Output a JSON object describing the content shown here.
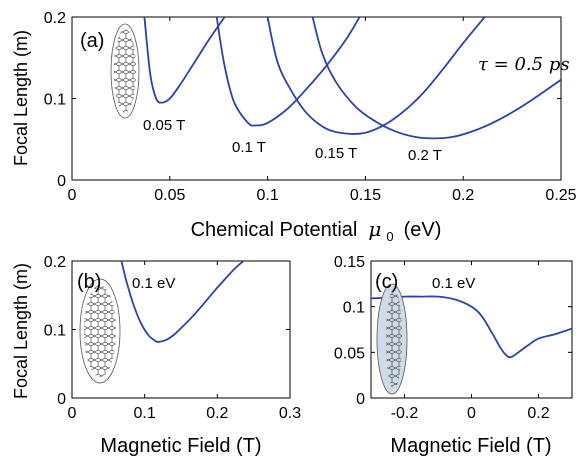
{
  "chart_data": [
    {
      "type": "line",
      "panel_label": "(a)",
      "xlabel": "Chemical Potential",
      "xlabel_symbol": "μ",
      "xlabel_sub": "0",
      "xlabel_unit": "(eV)",
      "ylabel": "Focal Length (m)",
      "xlim": [
        0,
        0.25
      ],
      "ylim": [
        0,
        0.2
      ],
      "xticks": [
        "0",
        "0.05",
        "0.1",
        "0.15",
        "0.2",
        "0.25"
      ],
      "yticks": [
        "0",
        "0.1",
        "0.2"
      ],
      "annotation_tau": "τ = 0.5 ps",
      "line_color": "#2b43a8",
      "series": [
        {
          "name": "0.05 T",
          "x": [
            0.037,
            0.04,
            0.043,
            0.046,
            0.05,
            0.055,
            0.062,
            0.07,
            0.078
          ],
          "y": [
            0.2,
            0.13,
            0.1,
            0.095,
            0.1,
            0.116,
            0.142,
            0.172,
            0.2
          ]
        },
        {
          "name": "0.1 T",
          "x": [
            0.074,
            0.078,
            0.083,
            0.09,
            0.094,
            0.1,
            0.11,
            0.12,
            0.13,
            0.14,
            0.147
          ],
          "y": [
            0.2,
            0.14,
            0.095,
            0.07,
            0.067,
            0.07,
            0.087,
            0.112,
            0.14,
            0.172,
            0.2
          ]
        },
        {
          "name": "0.15 T",
          "x": [
            0.1,
            0.105,
            0.112,
            0.12,
            0.13,
            0.14,
            0.15,
            0.16,
            0.17,
            0.18,
            0.19,
            0.2,
            0.211
          ],
          "y": [
            0.2,
            0.145,
            0.11,
            0.082,
            0.063,
            0.057,
            0.058,
            0.068,
            0.085,
            0.108,
            0.137,
            0.168,
            0.2
          ]
        },
        {
          "name": "0.2 T",
          "x": [
            0.123,
            0.128,
            0.135,
            0.145,
            0.155,
            0.165,
            0.175,
            0.185,
            0.195,
            0.205,
            0.215,
            0.225,
            0.235,
            0.25
          ],
          "y": [
            0.2,
            0.155,
            0.12,
            0.09,
            0.072,
            0.06,
            0.053,
            0.051,
            0.053,
            0.06,
            0.07,
            0.083,
            0.098,
            0.123
          ]
        }
      ]
    },
    {
      "type": "line",
      "panel_label": "(b)",
      "annotation": "0.1 eV",
      "xlabel": "Magnetic Field (T)",
      "ylabel": "Focal Length (m)",
      "xlim": [
        0,
        0.3
      ],
      "ylim": [
        0,
        0.2
      ],
      "xticks": [
        "0",
        "0.1",
        "0.2",
        "0.3"
      ],
      "yticks": [
        "0",
        "0.1",
        "0.2"
      ],
      "line_color": "#2b43a8",
      "series": [
        {
          "x": [
            0.068,
            0.075,
            0.085,
            0.095,
            0.105,
            0.115,
            0.12,
            0.13,
            0.14,
            0.15,
            0.165,
            0.18,
            0.195,
            0.21,
            0.225,
            0.236
          ],
          "y": [
            0.2,
            0.17,
            0.135,
            0.109,
            0.092,
            0.083,
            0.082,
            0.085,
            0.092,
            0.102,
            0.118,
            0.136,
            0.155,
            0.173,
            0.19,
            0.2
          ]
        }
      ]
    },
    {
      "type": "line",
      "panel_label": "(c)",
      "annotation": "0.1 eV",
      "xlabel": "Magnetic Field (T)",
      "ylabel": "",
      "xlim": [
        -0.3,
        0.3
      ],
      "ylim": [
        0,
        0.15
      ],
      "xticks": [
        "-0.2",
        "0",
        "0.2"
      ],
      "yticks": [
        "0",
        "0.05",
        "0.1",
        "0.15"
      ],
      "line_color": "#2b43a8",
      "series": [
        {
          "x": [
            -0.3,
            -0.25,
            -0.2,
            -0.15,
            -0.1,
            -0.05,
            0,
            0.03,
            0.06,
            0.09,
            0.11,
            0.125,
            0.14,
            0.17,
            0.2,
            0.25,
            0.3
          ],
          "y": [
            0.109,
            0.11,
            0.111,
            0.111,
            0.111,
            0.108,
            0.1,
            0.09,
            0.072,
            0.053,
            0.045,
            0.046,
            0.05,
            0.058,
            0.065,
            0.07,
            0.076
          ]
        }
      ]
    }
  ]
}
